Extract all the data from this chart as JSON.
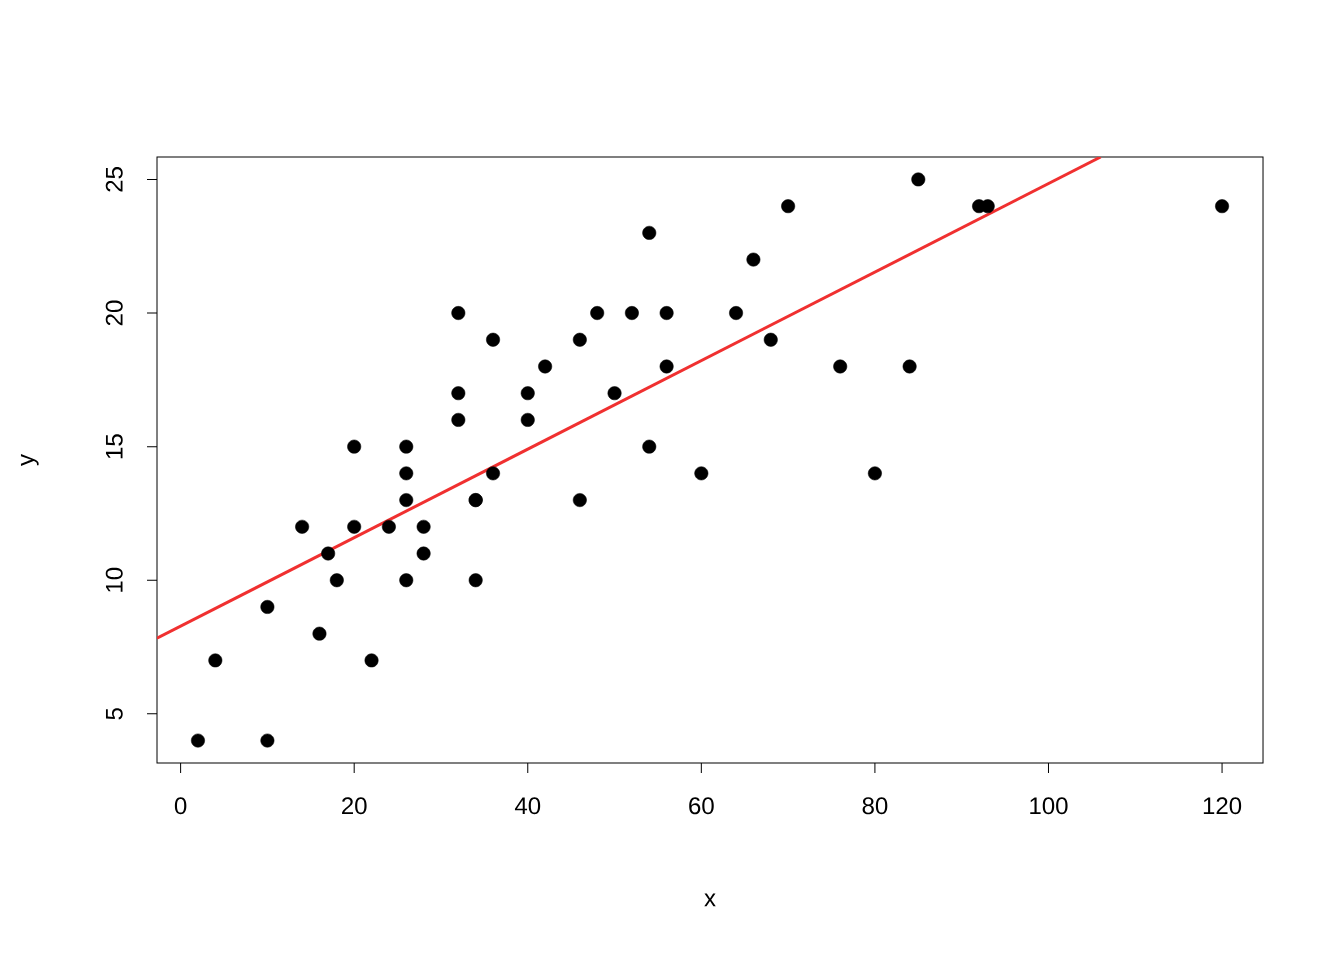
{
  "chart_data": {
    "type": "scatter",
    "xlabel": "x",
    "ylabel": "y",
    "xlim": [
      -2.72,
      124.72
    ],
    "ylim": [
      3.16,
      25.84
    ],
    "xticks": [
      0,
      20,
      40,
      60,
      80,
      100,
      120
    ],
    "yticks": [
      5,
      10,
      15,
      20,
      25
    ],
    "series": [
      {
        "marker": "circle",
        "color": "#000000",
        "x": [
          2,
          10,
          4,
          22,
          16,
          10,
          18,
          26,
          34,
          17,
          28,
          14,
          20,
          24,
          28,
          26,
          34,
          34,
          46,
          26,
          36,
          60,
          80,
          20,
          26,
          54,
          32,
          40,
          32,
          40,
          50,
          42,
          56,
          76,
          84,
          36,
          46,
          68,
          32,
          48,
          52,
          56,
          64,
          66,
          54,
          70,
          92,
          93,
          120,
          85
        ],
        "values": [
          4,
          4,
          7,
          7,
          8,
          9,
          10,
          10,
          10,
          11,
          11,
          12,
          12,
          12,
          12,
          13,
          13,
          13,
          13,
          14,
          14,
          14,
          14,
          15,
          15,
          15,
          16,
          16,
          17,
          17,
          17,
          18,
          18,
          18,
          18,
          19,
          19,
          19,
          20,
          20,
          20,
          20,
          20,
          22,
          23,
          24,
          24,
          24,
          24,
          25
        ]
      },
      {
        "type": "line",
        "marker": "none",
        "color": "#f03030",
        "x": [
          -2.72,
          106.01
        ],
        "values": [
          7.83,
          25.84
        ]
      }
    ]
  }
}
